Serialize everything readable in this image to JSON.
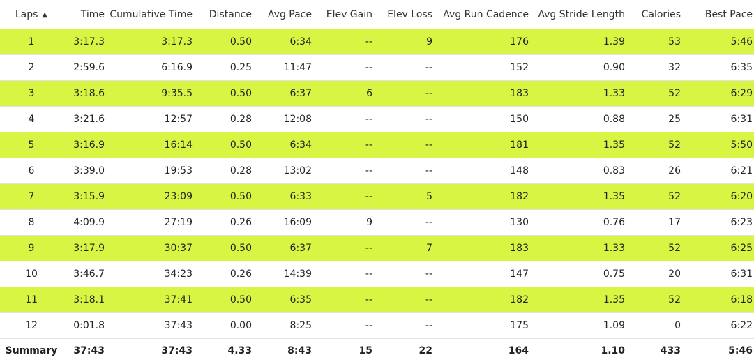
{
  "columns": {
    "laps": "Laps",
    "time": "Time",
    "cumulative_time": "Cumulative Time",
    "distance": "Distance",
    "avg_pace": "Avg Pace",
    "elev_gain": "Elev Gain",
    "elev_loss": "Elev Loss",
    "avg_run_cadence": "Avg Run Cadence",
    "avg_stride_length": "Avg Stride Length",
    "calories": "Calories",
    "best_pace": "Best Pace"
  },
  "sort": {
    "column": "laps",
    "icon": "sort-ascending-icon",
    "glyph": "▲"
  },
  "highlight_color": "#d7f542",
  "rows": [
    {
      "lap": "1",
      "time": "3:17.3",
      "cum": "3:17.3",
      "dist": "0.50",
      "pace": "6:34",
      "gain": "--",
      "loss": "9",
      "cadence": "176",
      "stride": "1.39",
      "cal": "53",
      "best": "5:46",
      "highlight": true
    },
    {
      "lap": "2",
      "time": "2:59.6",
      "cum": "6:16.9",
      "dist": "0.25",
      "pace": "11:47",
      "gain": "--",
      "loss": "--",
      "cadence": "152",
      "stride": "0.90",
      "cal": "32",
      "best": "6:35",
      "highlight": false
    },
    {
      "lap": "3",
      "time": "3:18.6",
      "cum": "9:35.5",
      "dist": "0.50",
      "pace": "6:37",
      "gain": "6",
      "loss": "--",
      "cadence": "183",
      "stride": "1.33",
      "cal": "52",
      "best": "6:29",
      "highlight": true
    },
    {
      "lap": "4",
      "time": "3:21.6",
      "cum": "12:57",
      "dist": "0.28",
      "pace": "12:08",
      "gain": "--",
      "loss": "--",
      "cadence": "150",
      "stride": "0.88",
      "cal": "25",
      "best": "6:31",
      "highlight": false
    },
    {
      "lap": "5",
      "time": "3:16.9",
      "cum": "16:14",
      "dist": "0.50",
      "pace": "6:34",
      "gain": "--",
      "loss": "--",
      "cadence": "181",
      "stride": "1.35",
      "cal": "52",
      "best": "5:50",
      "highlight": true
    },
    {
      "lap": "6",
      "time": "3:39.0",
      "cum": "19:53",
      "dist": "0.28",
      "pace": "13:02",
      "gain": "--",
      "loss": "--",
      "cadence": "148",
      "stride": "0.83",
      "cal": "26",
      "best": "6:21",
      "highlight": false
    },
    {
      "lap": "7",
      "time": "3:15.9",
      "cum": "23:09",
      "dist": "0.50",
      "pace": "6:33",
      "gain": "--",
      "loss": "5",
      "cadence": "182",
      "stride": "1.35",
      "cal": "52",
      "best": "6:20",
      "highlight": true
    },
    {
      "lap": "8",
      "time": "4:09.9",
      "cum": "27:19",
      "dist": "0.26",
      "pace": "16:09",
      "gain": "9",
      "loss": "--",
      "cadence": "130",
      "stride": "0.76",
      "cal": "17",
      "best": "6:23",
      "highlight": false
    },
    {
      "lap": "9",
      "time": "3:17.9",
      "cum": "30:37",
      "dist": "0.50",
      "pace": "6:37",
      "gain": "--",
      "loss": "7",
      "cadence": "183",
      "stride": "1.33",
      "cal": "52",
      "best": "6:25",
      "highlight": true
    },
    {
      "lap": "10",
      "time": "3:46.7",
      "cum": "34:23",
      "dist": "0.26",
      "pace": "14:39",
      "gain": "--",
      "loss": "--",
      "cadence": "147",
      "stride": "0.75",
      "cal": "20",
      "best": "6:31",
      "highlight": false
    },
    {
      "lap": "11",
      "time": "3:18.1",
      "cum": "37:41",
      "dist": "0.50",
      "pace": "6:35",
      "gain": "--",
      "loss": "--",
      "cadence": "182",
      "stride": "1.35",
      "cal": "52",
      "best": "6:18",
      "highlight": true
    },
    {
      "lap": "12",
      "time": "0:01.8",
      "cum": "37:43",
      "dist": "0.00",
      "pace": "8:25",
      "gain": "--",
      "loss": "--",
      "cadence": "175",
      "stride": "1.09",
      "cal": "0",
      "best": "6:22",
      "highlight": false
    }
  ],
  "summary": {
    "label": "Summary",
    "time": "37:43",
    "cum": "37:43",
    "dist": "4.33",
    "pace": "8:43",
    "gain": "15",
    "loss": "22",
    "cadence": "164",
    "stride": "1.10",
    "cal": "433",
    "best": "5:46"
  }
}
